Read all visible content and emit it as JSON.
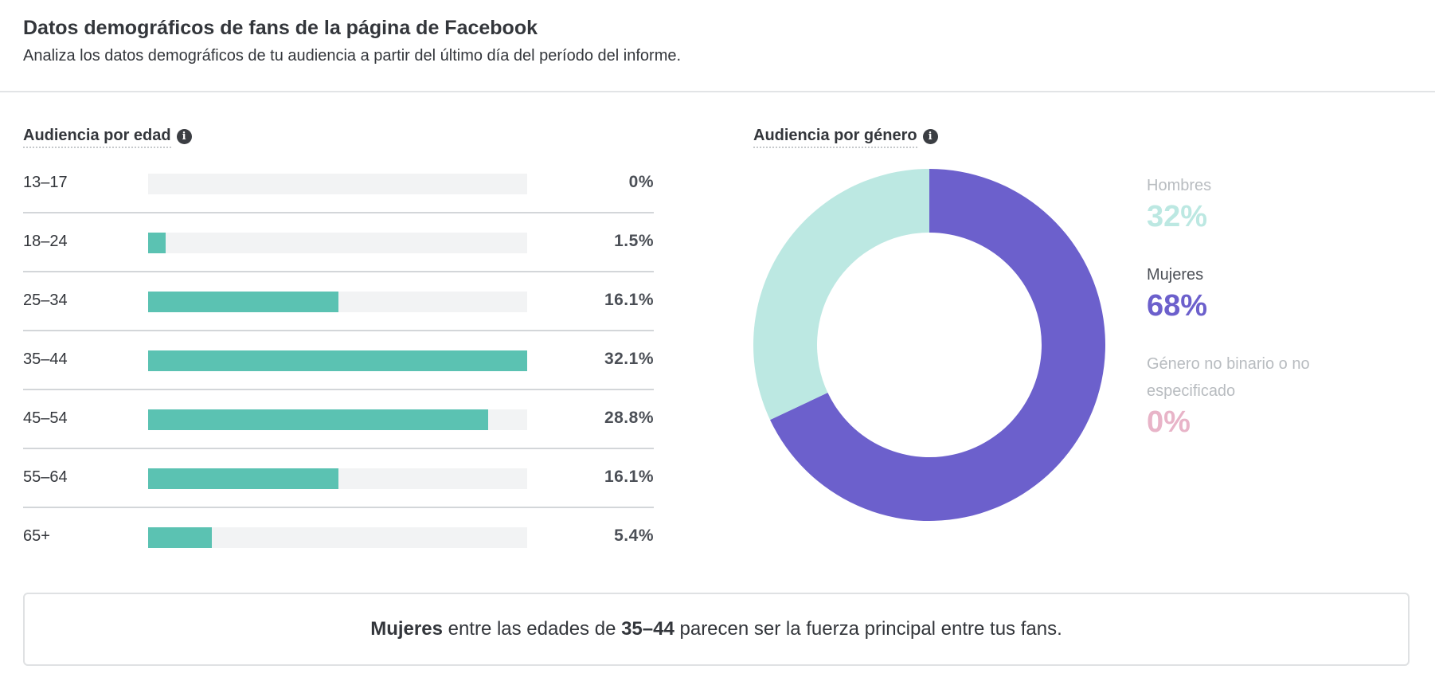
{
  "header": {
    "title": "Datos demográficos de fans de la página de Facebook",
    "subtitle": "Analiza los datos demográficos de tu audiencia a partir del último día del período del informe."
  },
  "age_section": {
    "label": "Audiencia por edad",
    "info_icon": "info-icon"
  },
  "gender_section": {
    "label": "Audiencia por género",
    "info_icon": "info-icon"
  },
  "chart_data": [
    {
      "type": "bar",
      "title": "Audiencia por edad",
      "categories": [
        "13–17",
        "18–24",
        "25–34",
        "35–44",
        "45–54",
        "55–64",
        "65+"
      ],
      "values": [
        0,
        1.5,
        16.1,
        32.1,
        28.8,
        16.1,
        5.4
      ],
      "labels": [
        "0%",
        "1.5%",
        "16.1%",
        "32.1%",
        "28.8%",
        "16.1%",
        "5.4%"
      ],
      "color": "#5bc2b2",
      "track_color": "#f2f3f4",
      "xlim": [
        0,
        32.1
      ]
    },
    {
      "type": "pie",
      "title": "Audiencia por género",
      "categories": [
        "Hombres",
        "Mujeres",
        "Género no binario o no especificado"
      ],
      "values": [
        32,
        68,
        0
      ],
      "labels": [
        "32%",
        "68%",
        "0%"
      ],
      "colors": [
        "#bce8e2",
        "#6c60cc",
        "#e8b4c8"
      ],
      "name_colors": [
        "#b8bcc0",
        "#4b4f56",
        "#b8bcc0"
      ],
      "legend": "right"
    }
  ],
  "insight": {
    "gender": "Mujeres",
    "text_middle": " entre las edades de ",
    "age": "35–44",
    "text_end": " parecen ser la fuerza principal entre tus fans."
  }
}
